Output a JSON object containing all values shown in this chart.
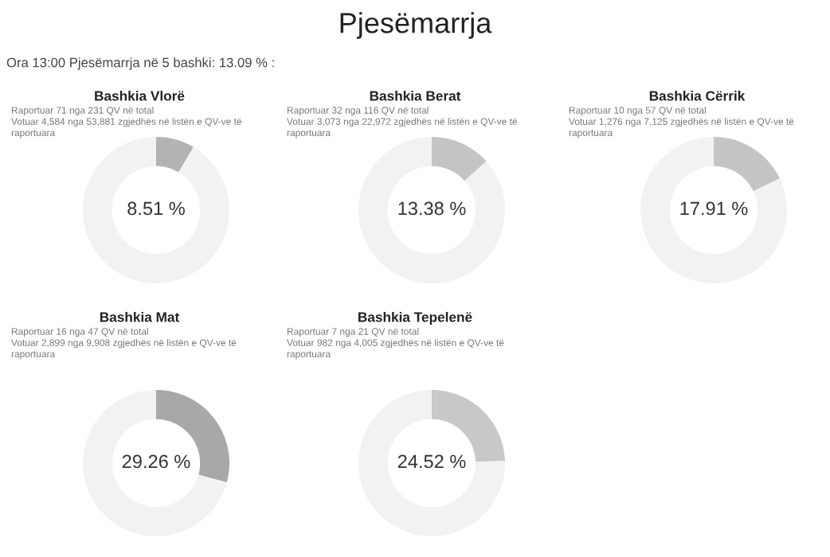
{
  "chart_data": [
    {
      "type": "other",
      "title": "Pjesëmarrja",
      "annotations": [
        "Ora 13:00 Pjesëmarrja në 5 bashki: 13.09 % :"
      ]
    },
    {
      "type": "donut",
      "title": "Bashkia Vlorë",
      "subtitle": "Raportuar 71 nga 231 QV në total\nVotuar 4,584 nga 53,881 zgjedhës në listën e QV-ve të\nraportuara",
      "categories": [
        null,
        null
      ],
      "values": [
        8.51,
        91.49
      ],
      "colors": [
        "#b3b3b3",
        "#f2f2f2"
      ],
      "value_labels": [
        "8.51 %",
        null
      ]
    },
    {
      "type": "donut",
      "title": "Bashkia Berat",
      "subtitle": "Raportuar 32 nga 116 QV në total\nVotuar 3,073 nga 22,972 zgjedhës në listën e QV-ve të\nraportuara",
      "categories": [
        null,
        null
      ],
      "values": [
        13.38,
        86.62
      ],
      "colors": [
        "#c4c4c4",
        "#f2f2f2"
      ],
      "value_labels": [
        "13.38 %",
        null
      ]
    },
    {
      "type": "donut",
      "title": "Bashkia Cërrik",
      "subtitle": "Raportuar 10 nga 57 QV në total\nVotuar 1,276 nga 7,125 zgjedhës në listën e QV-ve të\nraportuara",
      "categories": [
        null,
        null
      ],
      "values": [
        17.91,
        82.09
      ],
      "colors": [
        "#c4c4c4",
        "#f2f2f2"
      ],
      "value_labels": [
        "17.91 %",
        null
      ]
    },
    {
      "type": "donut",
      "title": "Bashkia Mat",
      "subtitle": "Raportuar 16 nga 47 QV në total\nVotuar 2,899 nga 9,908 zgjedhës në listën e QV-ve të\nraportuara",
      "categories": [
        null,
        null
      ],
      "values": [
        29.26,
        70.74
      ],
      "colors": [
        "#a8a8a8",
        "#f2f2f2"
      ],
      "value_labels": [
        "29.26 %",
        null
      ]
    },
    {
      "type": "donut",
      "title": "Bashkia Tepelenë",
      "subtitle": "Raportuar 7 nga 21 QV në total\nVotuar 982 nga 4,005 zgjedhës në listën e QV-ve të\nraportuara",
      "categories": [
        null,
        null
      ],
      "values": [
        24.52,
        75.48
      ],
      "colors": [
        "#c8c8c8",
        "#f2f2f2"
      ],
      "value_labels": [
        "24.52 %",
        null
      ]
    }
  ]
}
